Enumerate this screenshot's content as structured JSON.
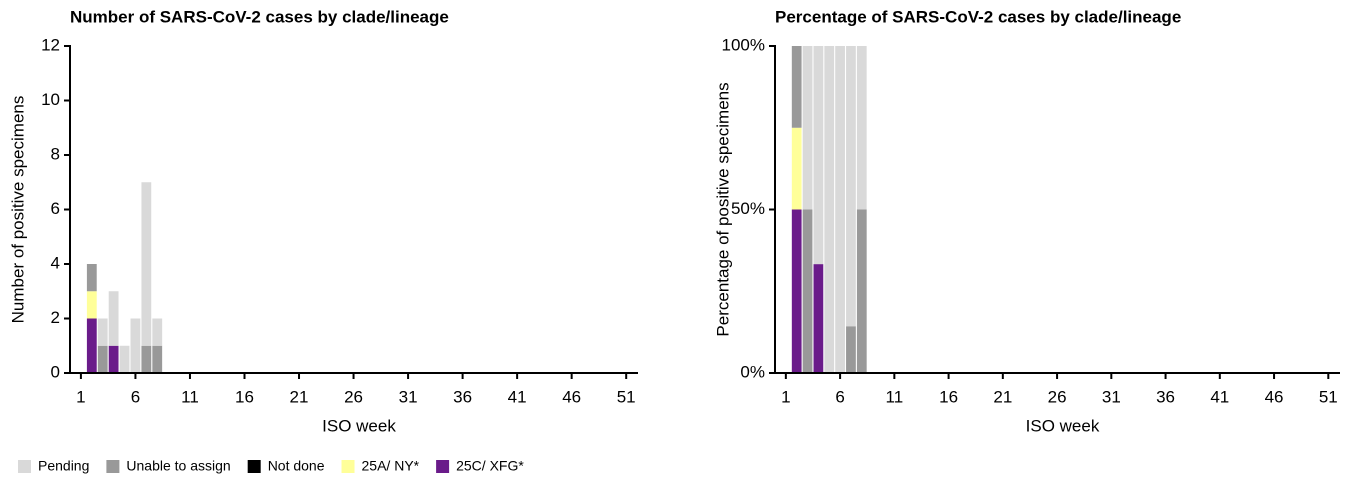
{
  "chart_data": [
    {
      "type": "stacked-bar",
      "title": "Number of SARS-CoV-2 cases by clade/lineage",
      "xlabel": "ISO week",
      "ylabel": "Number of positive specimens",
      "x": [
        2,
        3,
        4,
        5,
        6,
        7,
        8
      ],
      "series": [
        {
          "name": "25C/ XFG*",
          "color": "#6a1b8a",
          "values": [
            2,
            0,
            1,
            0,
            0,
            0,
            0
          ]
        },
        {
          "name": "25A/ NY*",
          "color": "#ffff99",
          "values": [
            1,
            0,
            0,
            0,
            0,
            0,
            0
          ]
        },
        {
          "name": "Not done",
          "color": "#000000",
          "values": [
            0,
            0,
            0,
            0,
            0,
            0,
            0
          ]
        },
        {
          "name": "Unable to assign",
          "color": "#999999",
          "values": [
            1,
            1,
            0,
            0,
            0,
            1,
            1
          ]
        },
        {
          "name": "Pending",
          "color": "#d9d9d9",
          "values": [
            0,
            1,
            2,
            1,
            2,
            6,
            1
          ]
        }
      ],
      "xlim": [
        0,
        53
      ],
      "xticks": [
        1,
        6,
        11,
        16,
        21,
        26,
        31,
        36,
        41,
        46,
        51
      ],
      "ylim": [
        0,
        12
      ],
      "yticks": [
        0,
        2,
        4,
        6,
        8,
        10,
        12
      ]
    },
    {
      "type": "stacked-bar",
      "title": "Percentage of SARS-CoV-2 cases by clade/lineage",
      "xlabel": "ISO week",
      "ylabel": "Percentage of positive specimens",
      "x": [
        2,
        3,
        4,
        5,
        6,
        7,
        8
      ],
      "series": [
        {
          "color": "#6a1b8a",
          "values": [
            50,
            0,
            33.3,
            0,
            0,
            0,
            0
          ]
        },
        {
          "color": "#ffff99",
          "values": [
            25,
            0,
            0,
            0,
            0,
            0,
            0
          ]
        },
        {
          "color": "#000000",
          "values": [
            0,
            0,
            0,
            0,
            0,
            0,
            0
          ]
        },
        {
          "color": "#999999",
          "values": [
            25,
            50,
            0,
            0,
            0,
            14.3,
            50
          ]
        },
        {
          "color": "#d9d9d9",
          "values": [
            0,
            50,
            66.7,
            100,
            100,
            85.7,
            50
          ]
        }
      ],
      "xlim": [
        0,
        53
      ],
      "xticks": [
        1,
        6,
        11,
        16,
        21,
        26,
        31,
        36,
        41,
        46,
        51
      ],
      "ylim": [
        0,
        100
      ],
      "yticks": [
        {
          "value": 0,
          "label": "0%"
        },
        {
          "value": 50,
          "label": "50%"
        },
        {
          "value": 100,
          "label": "100%"
        }
      ]
    }
  ]
}
